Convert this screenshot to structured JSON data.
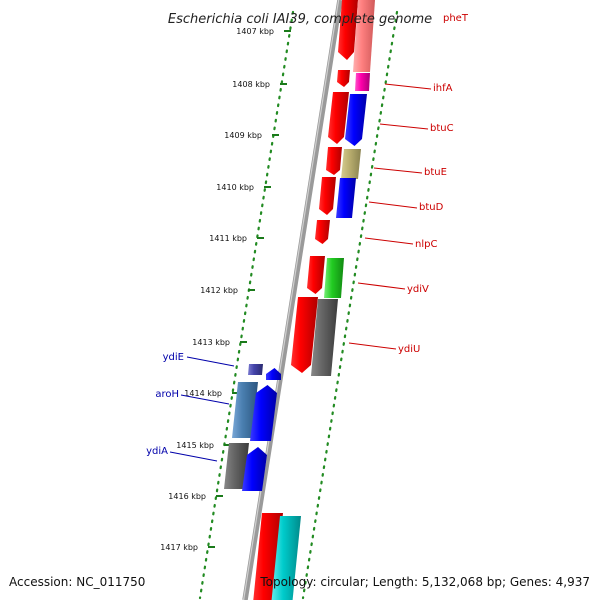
{
  "title": "Escherichia coli IAI39, complete genome",
  "footer": {
    "accession": "Accession: NC_011750",
    "topology": "Topology: circular; Length: 5,132,068 bp; Genes: 4,937"
  },
  "ticks": [
    {
      "label": "1407 kbp"
    },
    {
      "label": "1408 kbp"
    },
    {
      "label": "1409 kbp"
    },
    {
      "label": "1410 kbp"
    },
    {
      "label": "1411 kbp"
    },
    {
      "label": "1412 kbp"
    },
    {
      "label": "1413 kbp"
    },
    {
      "label": "1414 kbp"
    },
    {
      "label": "1415 kbp"
    },
    {
      "label": "1416 kbp"
    },
    {
      "label": "1417 kbp"
    }
  ],
  "genes_right": [
    {
      "name": "pheT"
    },
    {
      "name": "ihfA"
    },
    {
      "name": "btuC"
    },
    {
      "name": "btuE"
    },
    {
      "name": "btuD"
    },
    {
      "name": "nlpC"
    },
    {
      "name": "ydiV"
    },
    {
      "name": "ydiU"
    }
  ],
  "genes_left": [
    {
      "name": "ydiE"
    },
    {
      "name": "aroH"
    },
    {
      "name": "ydiA"
    }
  ],
  "colors": {
    "forward_strand": "#ff0000",
    "cog_blue": "#0000ff",
    "cog_gray": "#666666",
    "cog_cyan": "#00cccc",
    "cog_green": "#22cc22",
    "cog_olive": "#bbb070",
    "cog_pink": "#ff8080",
    "cog_magenta": "#ff00aa",
    "cog_steel": "#4a7fb0",
    "cog_indigo": "#4444aa",
    "label_right": "#cc0000",
    "label_left": "#0000aa",
    "tick_dot": "#228b22"
  }
}
